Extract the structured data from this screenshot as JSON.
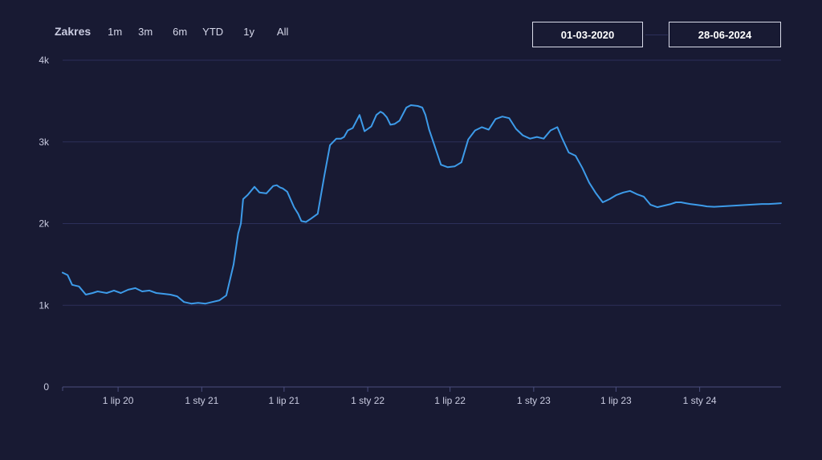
{
  "range_selector": {
    "label": "Zakres",
    "buttons": [
      "1m",
      "3m",
      "6m",
      "YTD",
      "1y",
      "All"
    ]
  },
  "date_range": {
    "from": "01-03-2020",
    "to": "28-06-2024"
  },
  "colors": {
    "background": "#181a33",
    "line": "#3d9be9",
    "grid": "#2c2f5a",
    "axis_text": "#c9cbe0"
  },
  "chart_data": {
    "type": "line",
    "title": "",
    "xlabel": "",
    "ylabel": "",
    "ylim": [
      0,
      4000
    ],
    "xlim": [
      "2020-03-01",
      "2024-06-28"
    ],
    "y_ticks": [
      {
        "value": 0,
        "label": "0"
      },
      {
        "value": 1000,
        "label": "1k"
      },
      {
        "value": 2000,
        "label": "2k"
      },
      {
        "value": 3000,
        "label": "3k"
      },
      {
        "value": 4000,
        "label": "4k"
      }
    ],
    "x_ticks": [
      {
        "date": "2020-07-01",
        "label": "1 lip 20"
      },
      {
        "date": "2021-01-01",
        "label": "1 sty 21"
      },
      {
        "date": "2021-07-01",
        "label": "1 lip 21"
      },
      {
        "date": "2022-01-01",
        "label": "1 sty 22"
      },
      {
        "date": "2022-07-01",
        "label": "1 lip 22"
      },
      {
        "date": "2023-01-01",
        "label": "1 sty 23"
      },
      {
        "date": "2023-07-01",
        "label": "1 lip 23"
      },
      {
        "date": "2024-01-01",
        "label": "1 sty 24"
      }
    ],
    "grid": true,
    "legend": "none",
    "series": [
      {
        "x": [
          "2020-03-01",
          "2020-03-12",
          "2020-03-22",
          "2020-04-06",
          "2020-04-21",
          "2020-05-06",
          "2020-05-17",
          "2020-06-06",
          "2020-06-22",
          "2020-07-07",
          "2020-07-23",
          "2020-08-08",
          "2020-08-23",
          "2020-09-08",
          "2020-09-23",
          "2020-10-09",
          "2020-10-24",
          "2020-11-08",
          "2020-11-23",
          "2020-12-09",
          "2020-12-24",
          "2021-01-09",
          "2021-01-24",
          "2021-02-09",
          "2021-02-24",
          "2021-03-12",
          "2021-03-22",
          "2021-03-28",
          "2021-04-02",
          "2021-04-12",
          "2021-04-27",
          "2021-05-08",
          "2021-05-23",
          "2021-06-07",
          "2021-06-15",
          "2021-06-20",
          "2021-06-23",
          "2021-06-28",
          "2021-07-08",
          "2021-07-23",
          "2021-08-01",
          "2021-08-08",
          "2021-08-18",
          "2021-08-29",
          "2021-09-13",
          "2021-09-28",
          "2021-10-10",
          "2021-10-24",
          "2021-11-03",
          "2021-11-10",
          "2021-11-18",
          "2021-11-29",
          "2021-12-14",
          "2021-12-25",
          "2022-01-09",
          "2022-01-20",
          "2022-01-29",
          "2022-02-04",
          "2022-02-12",
          "2022-02-20",
          "2022-03-01",
          "2022-03-12",
          "2022-03-27",
          "2022-04-06",
          "2022-04-21",
          "2022-05-01",
          "2022-05-08",
          "2022-05-16",
          "2022-05-27",
          "2022-06-11",
          "2022-06-26",
          "2022-07-11",
          "2022-07-26",
          "2022-08-10",
          "2022-08-25",
          "2022-09-09",
          "2022-09-24",
          "2022-10-09",
          "2022-10-24",
          "2022-11-08",
          "2022-11-23",
          "2022-12-08",
          "2022-12-24",
          "2023-01-08",
          "2023-01-23",
          "2023-02-07",
          "2023-02-22",
          "2023-03-04",
          "2023-03-19",
          "2023-04-03",
          "2023-04-18",
          "2023-05-03",
          "2023-05-18",
          "2023-06-02",
          "2023-06-17",
          "2023-07-02",
          "2023-07-17",
          "2023-08-01",
          "2023-08-16",
          "2023-08-31",
          "2023-09-15",
          "2023-09-30",
          "2023-10-15",
          "2023-10-30",
          "2023-11-10",
          "2023-11-21",
          "2023-12-01",
          "2023-12-11",
          "2023-12-25",
          "2024-01-07",
          "2024-01-17",
          "2024-02-02",
          "2024-02-17",
          "2024-03-03",
          "2024-03-18",
          "2024-04-02",
          "2024-04-17",
          "2024-05-02",
          "2024-05-17",
          "2024-06-01",
          "2024-06-16",
          "2024-06-28"
        ],
        "values": [
          1400,
          1370,
          1250,
          1230,
          1130,
          1150,
          1170,
          1150,
          1180,
          1150,
          1190,
          1210,
          1170,
          1180,
          1150,
          1140,
          1130,
          1110,
          1040,
          1020,
          1030,
          1020,
          1040,
          1060,
          1120,
          1500,
          1880,
          2000,
          2300,
          2350,
          2450,
          2380,
          2370,
          2460,
          2470,
          2450,
          2440,
          2430,
          2390,
          2200,
          2120,
          2030,
          2020,
          2060,
          2120,
          2600,
          2960,
          3040,
          3040,
          3060,
          3140,
          3170,
          3330,
          3130,
          3190,
          3330,
          3370,
          3350,
          3300,
          3210,
          3220,
          3260,
          3420,
          3450,
          3440,
          3420,
          3330,
          3150,
          2970,
          2720,
          2690,
          2700,
          2750,
          3030,
          3140,
          3180,
          3150,
          3280,
          3310,
          3290,
          3160,
          3080,
          3040,
          3060,
          3040,
          3140,
          3180,
          3050,
          2870,
          2830,
          2680,
          2500,
          2370,
          2260,
          2300,
          2350,
          2380,
          2400,
          2360,
          2330,
          2230,
          2200,
          2220,
          2240,
          2260,
          2260,
          2250,
          2240,
          2230,
          2220,
          2210,
          2205,
          2210,
          2215,
          2220,
          2225,
          2230,
          2235,
          2240,
          2240,
          2245,
          2250
        ],
        "color": "#3d9be9"
      }
    ]
  }
}
